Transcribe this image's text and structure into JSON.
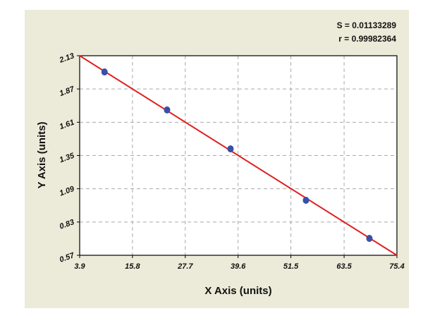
{
  "chart_data": {
    "type": "scatter",
    "xlabel": "X Axis (units)",
    "ylabel": "Y Axis (units)",
    "annotations": [
      "S = 0.01133289",
      "r = 0.99982364"
    ],
    "x": [
      9.5,
      23.6,
      37.9,
      54.9,
      69.2
    ],
    "values": [
      2.003,
      1.706,
      1.402,
      1.0,
      0.702
    ],
    "color": "#3a4fa8",
    "fit_line": {
      "x": [
        3.9,
        75.4
      ],
      "values": [
        2.13,
        0.57
      ],
      "color": "#e02020"
    },
    "xlim": [
      3.9,
      75.4
    ],
    "xticks": [
      3.9,
      15.8,
      27.7,
      39.6,
      51.5,
      63.5,
      75.4
    ],
    "ylim": [
      0.57,
      2.13
    ],
    "yticks": [
      0.57,
      0.83,
      1.09,
      1.35,
      1.61,
      1.87,
      2.13
    ],
    "grid": true
  }
}
